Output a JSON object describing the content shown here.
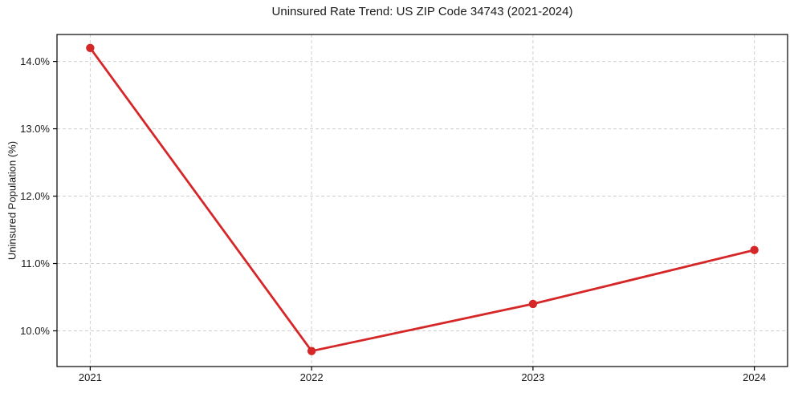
{
  "chart_data": {
    "type": "line",
    "title": "Uninsured Rate Trend: US ZIP Code 34743 (2021-2024)",
    "xlabel": "",
    "ylabel": "Uninsured Population (%)",
    "x": [
      2021,
      2022,
      2023,
      2024
    ],
    "values": [
      14.2,
      9.7,
      10.4,
      11.2
    ],
    "xticks": [
      2021,
      2022,
      2023,
      2024
    ],
    "xtick_labels": [
      "2021",
      "2022",
      "2023",
      "2024"
    ],
    "yticks": [
      10.0,
      11.0,
      12.0,
      13.0,
      14.0
    ],
    "ytick_labels": [
      "10.0%",
      "11.0%",
      "12.0%",
      "13.0%",
      "14.0%"
    ],
    "xlim": [
      2020.85,
      2024.15
    ],
    "ylim": [
      9.47,
      14.4
    ],
    "grid": true,
    "grid_style": "dashed",
    "legend": "none",
    "marker": "circle",
    "colors": {
      "line": "#d62728",
      "marker": "#d62728",
      "grid": "#cfcfcf",
      "axes": "#000000",
      "text": "#1a1a1a"
    }
  }
}
